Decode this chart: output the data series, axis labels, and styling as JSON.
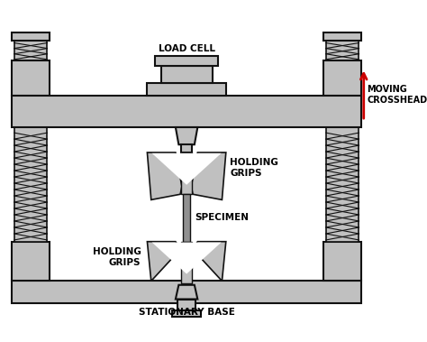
{
  "bg_color": "#ffffff",
  "gray_fill": "#c0c0c0",
  "dark_outline": "#111111",
  "red_arrow": "#cc0000",
  "text_color": "#000000",
  "labels": {
    "load_cell": "LOAD CELL",
    "moving_crosshead": "MOVING\nCROSSHEAD",
    "holding_grips_top": "HOLDING\nGRIPS",
    "specimen": "SPECIMEN",
    "holding_grips_bot": "HOLDING\nGRIPS",
    "stationary_base": "STATIONARY BASE"
  },
  "figsize": [
    4.74,
    3.79
  ],
  "dpi": 100
}
